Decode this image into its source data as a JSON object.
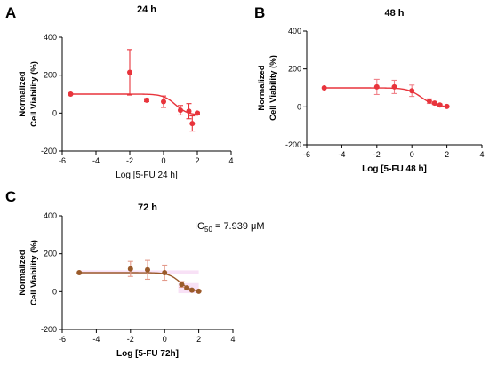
{
  "chart_data": [
    {
      "panel": "A",
      "type": "scatter",
      "title": "24 h",
      "xlabel": "Log [5-FU 24 h]",
      "ylabel": "Normalized Cell Viability (%)",
      "xlim": [
        -6,
        4
      ],
      "ylim": [
        -200,
        400
      ],
      "xticks": [
        "-6",
        "-4",
        "-2",
        "0",
        "2",
        "4"
      ],
      "yticks": [
        "-200",
        "0",
        "200",
        "400"
      ],
      "color": "#e8343c",
      "errorbar_color": "#e8343c",
      "points": [
        {
          "x": -5.5,
          "y": 100,
          "err": 0
        },
        {
          "x": -2,
          "y": 215,
          "err": 120
        },
        {
          "x": -1,
          "y": 68,
          "err": 8
        },
        {
          "x": 0,
          "y": 60,
          "err": 30
        },
        {
          "x": 1,
          "y": 15,
          "err": 25
        },
        {
          "x": 1.5,
          "y": 10,
          "err": 40
        },
        {
          "x": 1.7,
          "y": -55,
          "err": 40
        },
        {
          "x": 2,
          "y": 0,
          "err": 5
        }
      ],
      "fit": {
        "top": 100,
        "bottom": -10,
        "logIC50": 0.7,
        "hill": -1.2,
        "x_from": -5.5,
        "x_to": 2
      }
    },
    {
      "panel": "B",
      "type": "scatter",
      "title": "48 h",
      "xlabel": "Log [5-FU 48 h]",
      "ylabel": "Normalized Cell Viability (%)",
      "xlim": [
        -6,
        4
      ],
      "ylim": [
        -200,
        400
      ],
      "xticks": [
        "-6",
        "-4",
        "-2",
        "0",
        "2",
        "4"
      ],
      "yticks": [
        "-200",
        "0",
        "200",
        "400"
      ],
      "color": "#e8343c",
      "errorbar_color": "#f08088",
      "points": [
        {
          "x": -5,
          "y": 100,
          "err": 0
        },
        {
          "x": -2,
          "y": 105,
          "err": 40
        },
        {
          "x": -1,
          "y": 105,
          "err": 35
        },
        {
          "x": 0,
          "y": 85,
          "err": 30
        },
        {
          "x": 1,
          "y": 30,
          "err": 12
        },
        {
          "x": 1.3,
          "y": 20,
          "err": 8
        },
        {
          "x": 1.6,
          "y": 10,
          "err": 5
        },
        {
          "x": 2,
          "y": 2,
          "err": 3
        }
      ],
      "fit": {
        "top": 100,
        "bottom": 0,
        "logIC50": 0.55,
        "hill": -1.1,
        "x_from": -5,
        "x_to": 2
      }
    },
    {
      "panel": "C",
      "type": "scatter",
      "title": "72 h",
      "xlabel": "Log [5-FU 72h]",
      "ylabel": "Normalized Cell Viability (%)",
      "xlim": [
        -6,
        4
      ],
      "ylim": [
        -200,
        400
      ],
      "xticks": [
        "-6",
        "-4",
        "-2",
        "0",
        "2",
        "4"
      ],
      "yticks": [
        "-200",
        "0",
        "200",
        "400"
      ],
      "color": "#9a5a2a",
      "errorbar_color": "#e39a8a",
      "points": [
        {
          "x": -5,
          "y": 100,
          "err": 0
        },
        {
          "x": -2,
          "y": 120,
          "err": 40
        },
        {
          "x": -1,
          "y": 115,
          "err": 50
        },
        {
          "x": 0,
          "y": 100,
          "err": 40
        },
        {
          "x": 1,
          "y": 38,
          "err": 15
        },
        {
          "x": 1.3,
          "y": 20,
          "err": 8
        },
        {
          "x": 1.6,
          "y": 8,
          "err": 5
        },
        {
          "x": 2,
          "y": 2,
          "err": 3
        }
      ],
      "fit": {
        "top": 100,
        "bottom": 0,
        "logIC50": 0.9,
        "hill": -1.3,
        "x_from": -5,
        "x_to": 2
      },
      "band_color": "#f3c9ee",
      "annotation": {
        "prefix": "IC",
        "subscript": "50",
        "suffix": " = 7.939 μM"
      }
    }
  ]
}
